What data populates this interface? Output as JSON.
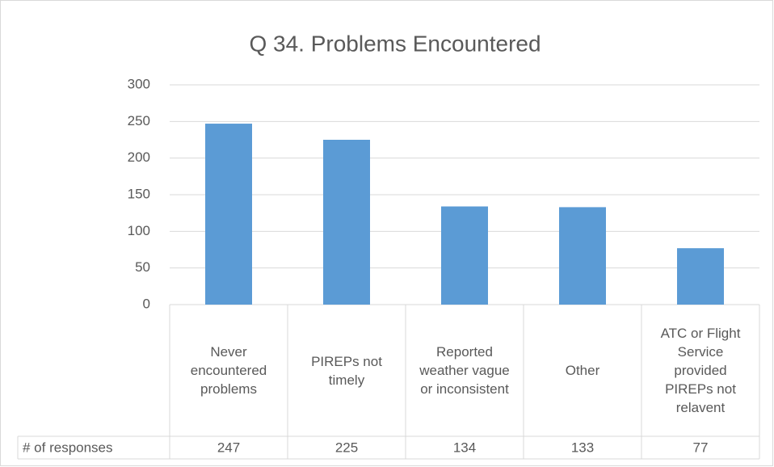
{
  "chart_data": {
    "type": "bar",
    "title": "Q 34. Problems Encountered",
    "categories": [
      "Never encountered problems",
      "PIREPs not timely",
      "Reported weather vague or inconsistent",
      "Other",
      "ATC or Flight Service provided PIREPs not relavent"
    ],
    "series": [
      {
        "name": "# of responses",
        "color": "#5b9bd5",
        "values": [
          247,
          225,
          134,
          133,
          77
        ]
      }
    ],
    "ylim": [
      0,
      300
    ],
    "yticks": [
      0,
      50,
      100,
      150,
      200,
      250,
      300
    ],
    "grid": true,
    "data_table": true
  }
}
